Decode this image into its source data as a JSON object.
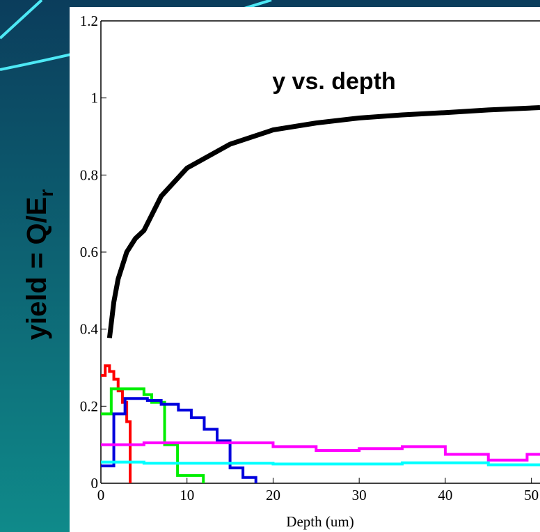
{
  "chart_data": {
    "type": "line",
    "title": "y vs. depth",
    "x_label": "Depth (um)",
    "y_label": "yield = Q/E",
    "y_label_sub": "r",
    "xlim": [
      0,
      51
    ],
    "ylim": [
      0,
      1.2
    ],
    "xticks": [
      0,
      10,
      20,
      30,
      40,
      50
    ],
    "yticks": [
      0,
      0.2,
      0.4,
      0.6,
      0.8,
      1,
      1.2
    ],
    "series": [
      {
        "color": "#000000",
        "style": "line",
        "width": 7,
        "x": [
          1,
          1.5,
          2,
          3,
          4,
          5,
          7,
          10,
          15,
          20,
          25,
          30,
          35,
          40,
          45,
          51
        ],
        "values": [
          0.377,
          0.47,
          0.53,
          0.6,
          0.635,
          0.656,
          0.745,
          0.818,
          0.88,
          0.917,
          0.935,
          0.948,
          0.956,
          0.962,
          0.969,
          0.975
        ]
      },
      {
        "color": "#ff0000",
        "style": "step",
        "width": 4,
        "x": [
          0,
          0.5,
          1,
          1.5,
          2,
          2.5,
          3,
          3.4
        ],
        "values": [
          0.28,
          0.305,
          0.29,
          0.27,
          0.24,
          0.21,
          0.16,
          0
        ]
      },
      {
        "color": "#00ee00",
        "style": "step",
        "width": 4,
        "x": [
          0,
          1.2,
          5,
          5.9,
          7.4,
          8.9,
          11.9
        ],
        "values": [
          0.18,
          0.245,
          0.23,
          0.21,
          0.1,
          0.02,
          0
        ]
      },
      {
        "color": "#0000dd",
        "style": "step",
        "width": 4,
        "x": [
          0,
          1.5,
          2.8,
          5.4,
          7,
          9,
          10.5,
          12,
          13.5,
          15,
          16.5,
          18
        ],
        "values": [
          0.045,
          0.18,
          0.22,
          0.215,
          0.205,
          0.19,
          0.17,
          0.14,
          0.11,
          0.04,
          0.015,
          0
        ]
      },
      {
        "color": "#ff00ff",
        "style": "step",
        "width": 4,
        "x": [
          0,
          5,
          20,
          25,
          30,
          35,
          40,
          45,
          49.5,
          51
        ],
        "values": [
          0.1,
          0.105,
          0.095,
          0.085,
          0.09,
          0.095,
          0.075,
          0.06,
          0.075,
          0.075
        ]
      },
      {
        "color": "#00ffff",
        "style": "step",
        "width": 4,
        "x": [
          0,
          5,
          20,
          35,
          45,
          51
        ],
        "values": [
          0.055,
          0.052,
          0.05,
          0.053,
          0.048,
          0.048
        ]
      }
    ]
  }
}
